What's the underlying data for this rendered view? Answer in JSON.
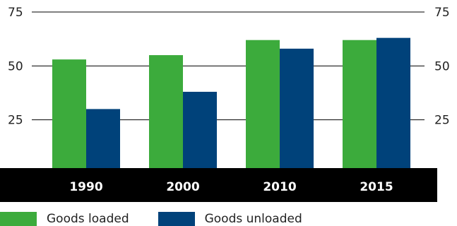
{
  "chart_data": {
    "type": "bar",
    "categories": [
      "1990",
      "2000",
      "2010",
      "2015"
    ],
    "series": [
      {
        "name": "Goods loaded",
        "values": [
          53,
          55,
          62,
          62
        ]
      },
      {
        "name": "Goods unloaded",
        "values": [
          30,
          38,
          58,
          63
        ]
      }
    ],
    "ylim": [
      0,
      75
    ],
    "yticks": [
      25,
      50,
      75
    ],
    "ytick_labels": [
      "25",
      "50",
      "75"
    ],
    "grid": true,
    "legend_position": "bottom-left",
    "colors": {
      "goods_loaded": "#3cab3c",
      "goods_unloaded": "#00427a",
      "axis_band": "#000000",
      "grid": "#000000"
    }
  }
}
